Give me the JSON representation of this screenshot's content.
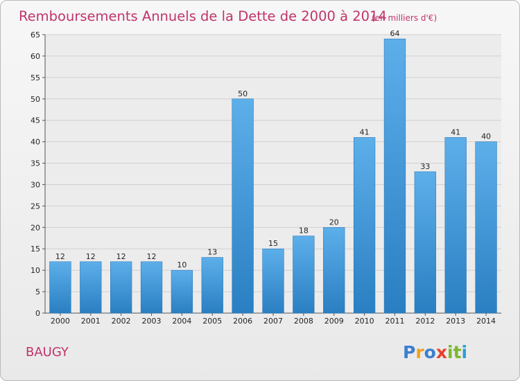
{
  "chart_data": {
    "type": "bar",
    "title": "Remboursements Annuels de la Dette de 2000 à 2014",
    "subtitle": "(en milliers d'€)",
    "categories": [
      "2000",
      "2001",
      "2002",
      "2003",
      "2004",
      "2005",
      "2006",
      "2007",
      "2008",
      "2009",
      "2010",
      "2011",
      "2012",
      "2013",
      "2014"
    ],
    "values": [
      12,
      12,
      12,
      12,
      10,
      13,
      50,
      15,
      18,
      20,
      41,
      64,
      33,
      41,
      40
    ],
    "ylim": [
      0,
      65
    ],
    "yticks": [
      0,
      5,
      10,
      15,
      20,
      25,
      30,
      35,
      40,
      45,
      50,
      55,
      60,
      65
    ],
    "grid": true,
    "bar_color": "#3a8fd6"
  },
  "place_label": "BAUGY",
  "logo": {
    "text": "Proxiti",
    "letter_colors": [
      "#3a7fd0",
      "#f0a020",
      "#3a7fd0",
      "#e8402a",
      "#7ab82e",
      "#7ab82e",
      "#2a9fd8"
    ]
  }
}
